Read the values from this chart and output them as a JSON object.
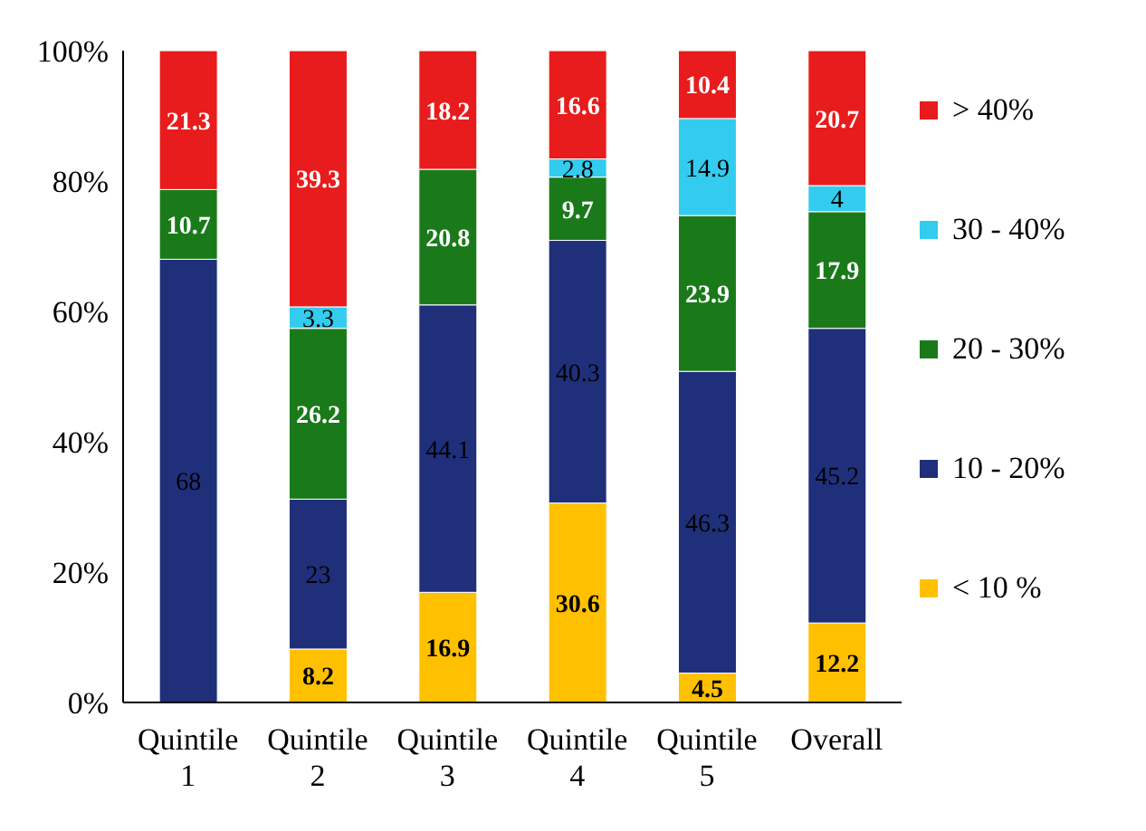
{
  "chart_data": {
    "type": "bar",
    "stacked": true,
    "categories": [
      "Quintile 1",
      "Quintile 2",
      "Quintile 3",
      "Quintile 4",
      "Quintile 5",
      "Overall"
    ],
    "ylim": [
      0,
      100
    ],
    "yticks": [
      {
        "value": 0,
        "label": "0%"
      },
      {
        "value": 20,
        "label": "20%"
      },
      {
        "value": 40,
        "label": "40%"
      },
      {
        "value": 60,
        "label": "60%"
      },
      {
        "value": 80,
        "label": "80%"
      },
      {
        "value": 100,
        "label": "100%"
      }
    ],
    "grid": false,
    "legend": "right",
    "series": [
      {
        "name": "< 10 %",
        "color": "#ffc000",
        "values": [
          0,
          8.2,
          16.9,
          30.6,
          4.5,
          12.2
        ],
        "value_labels": [
          null,
          "8.2",
          "16.9",
          "30.6",
          "4.5",
          "12.2"
        ]
      },
      {
        "name": "10 - 20%",
        "color": "#1f2f7a",
        "values": [
          68,
          23,
          44.1,
          40.3,
          46.3,
          45.2
        ],
        "value_labels": [
          "68",
          "23",
          "44.1",
          "40.3",
          "46.3",
          "45.2"
        ]
      },
      {
        "name": "20 - 30%",
        "color": "#1a7a1a",
        "values": [
          10.7,
          26.2,
          20.8,
          9.7,
          23.9,
          17.9
        ],
        "value_labels": [
          "10.7",
          "26.2",
          "20.8",
          "9.7",
          "23.9",
          "17.9"
        ]
      },
      {
        "name": "30 - 40%",
        "color": "#33ccee",
        "values": [
          0,
          3.3,
          0,
          2.8,
          14.9,
          4
        ],
        "value_labels": [
          null,
          "3.3",
          null,
          "2.8",
          "14.9",
          "4"
        ]
      },
      {
        "name": "> 40%",
        "color": "#e81c1c",
        "values": [
          21.3,
          39.3,
          18.2,
          16.6,
          10.4,
          20.7
        ],
        "value_labels": [
          "21.3",
          "39.3",
          "18.2",
          "16.6",
          "10.4",
          "20.7"
        ]
      }
    ]
  }
}
